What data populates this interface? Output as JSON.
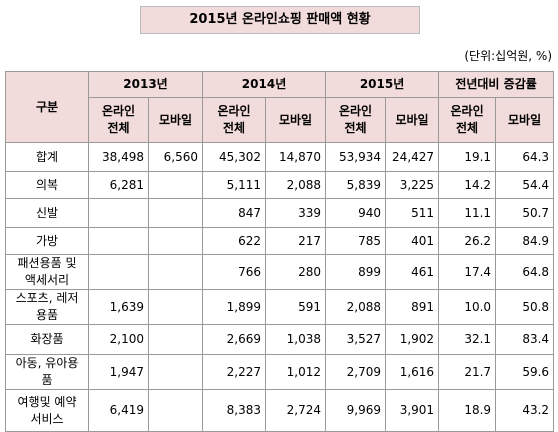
{
  "header": {
    "title": "2015년 온라인쇼핑 판매액 현황",
    "unit": "(단위:십억원, %)"
  },
  "table": {
    "label_header": "구분",
    "groups": [
      "2013년",
      "2014년",
      "2015년",
      "전년대비 증감률"
    ],
    "subheaders": [
      "온라인\n전체",
      "모바일",
      "온라인\n전체",
      "모바일",
      "온라인\n전체",
      "모바일",
      "온라인\n전체",
      "모바일"
    ],
    "rows": [
      [
        "합계",
        "38,498",
        "6,560",
        "45,302",
        "14,870",
        "53,934",
        "24,427",
        "19.1",
        "64.3"
      ],
      [
        "의복",
        "6,281",
        null,
        "5,111",
        "2,088",
        "5,839",
        "3,225",
        "14.2",
        "54.4"
      ],
      [
        "신발",
        null,
        null,
        "847",
        "339",
        "940",
        "511",
        "11.1",
        "50.7"
      ],
      [
        "가방",
        null,
        null,
        "622",
        "217",
        "785",
        "401",
        "26.2",
        "84.9"
      ],
      [
        "패션용품 및\n액세서리",
        null,
        null,
        "766",
        "280",
        "899",
        "461",
        "17.4",
        "64.8"
      ],
      [
        "스포츠, 레저\n용품",
        "1,639",
        null,
        "1,899",
        "591",
        "2,088",
        "891",
        "10.0",
        "50.8"
      ],
      [
        "화장품",
        "2,100",
        null,
        "2,669",
        "1,038",
        "3,527",
        "1,902",
        "32.1",
        "83.4"
      ],
      [
        "아동, 유아용\n품",
        "1,947",
        null,
        "2,227",
        "1,012",
        "2,709",
        "1,616",
        "21.7",
        "59.6"
      ],
      [
        "여행및 예약\n서비스",
        "6,419",
        null,
        "8,383",
        "2,724",
        "9,969",
        "3,901",
        "18.9",
        "43.2"
      ]
    ]
  }
}
